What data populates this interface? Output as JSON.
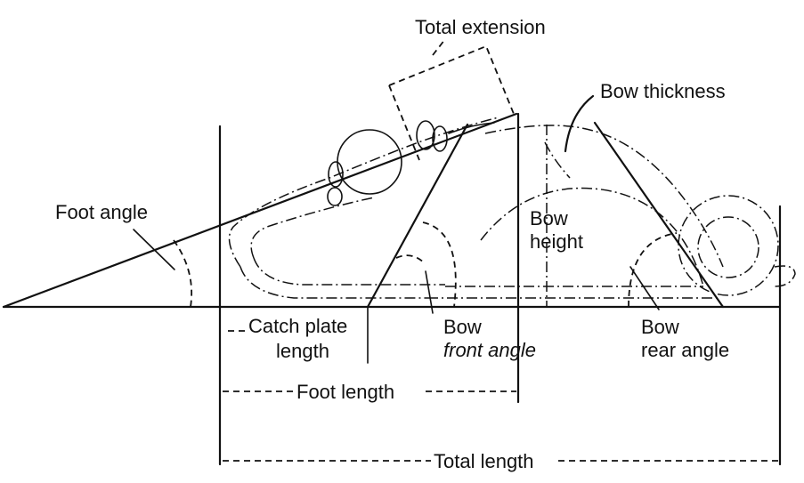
{
  "labels": {
    "total_extension": "Total extension",
    "bow_thickness": "Bow thickness",
    "foot_angle": "Foot angle",
    "bow_height_1": "Bow",
    "bow_height_2": "height",
    "catch_plate_1": "Catch plate",
    "catch_plate_2": "length",
    "bow_front_1": "Bow",
    "bow_front_2": "front angle",
    "bow_rear_1": "Bow",
    "bow_rear_2": "rear angle",
    "foot_length": "Foot length",
    "total_length": "Total length"
  }
}
